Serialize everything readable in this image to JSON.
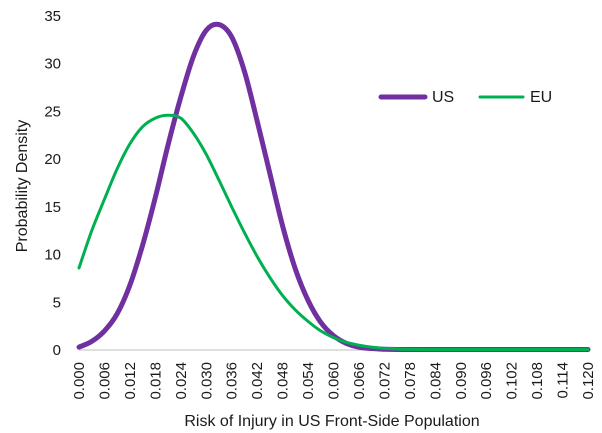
{
  "chart_data": {
    "type": "line",
    "title": "",
    "xlabel": "Risk of Injury in US Front-Side Population",
    "ylabel": "Probability Density",
    "xlim": [
      0.0,
      0.12
    ],
    "ylim": [
      0,
      35
    ],
    "x_ticks": [
      "0.000",
      "0.006",
      "0.012",
      "0.018",
      "0.024",
      "0.030",
      "0.036",
      "0.042",
      "0.048",
      "0.054",
      "0.060",
      "0.066",
      "0.072",
      "0.078",
      "0.084",
      "0.090",
      "0.096",
      "0.102",
      "0.108",
      "0.114",
      "0.120"
    ],
    "y_ticks": [
      "0",
      "5",
      "10",
      "15",
      "20",
      "25",
      "30",
      "35"
    ],
    "grid": false,
    "legend_position": "top-right",
    "series": [
      {
        "name": "US",
        "color": "#7030A0",
        "x": [
          0.0,
          0.003,
          0.006,
          0.009,
          0.012,
          0.015,
          0.018,
          0.021,
          0.024,
          0.027,
          0.03,
          0.033,
          0.036,
          0.039,
          0.042,
          0.045,
          0.048,
          0.051,
          0.054,
          0.057,
          0.06,
          0.063,
          0.066,
          0.069,
          0.072,
          0.075,
          0.078,
          0.084,
          0.09,
          0.096,
          0.102,
          0.108,
          0.114,
          0.12
        ],
        "y": [
          0.3,
          0.9,
          2.0,
          3.8,
          6.8,
          11.0,
          16.0,
          21.5,
          26.5,
          30.8,
          33.5,
          34.1,
          32.8,
          29.2,
          24.0,
          18.5,
          13.0,
          8.5,
          5.2,
          2.9,
          1.5,
          0.7,
          0.3,
          0.15,
          0.08,
          0.05,
          0.05,
          0.05,
          0.05,
          0.05,
          0.05,
          0.05,
          0.05,
          0.05
        ]
      },
      {
        "name": "EU",
        "color": "#00B050",
        "x": [
          0.0,
          0.003,
          0.006,
          0.009,
          0.012,
          0.015,
          0.018,
          0.021,
          0.024,
          0.027,
          0.03,
          0.033,
          0.036,
          0.039,
          0.042,
          0.045,
          0.048,
          0.051,
          0.054,
          0.057,
          0.06,
          0.063,
          0.066,
          0.069,
          0.072,
          0.075,
          0.078,
          0.084,
          0.09,
          0.096,
          0.102,
          0.108,
          0.114,
          0.12
        ],
        "y": [
          8.6,
          12.5,
          15.8,
          19.0,
          21.6,
          23.4,
          24.3,
          24.6,
          24.3,
          22.7,
          20.5,
          17.8,
          15.0,
          12.3,
          9.8,
          7.6,
          5.7,
          4.2,
          3.0,
          2.0,
          1.3,
          0.8,
          0.5,
          0.3,
          0.18,
          0.1,
          0.06,
          0.05,
          0.05,
          0.05,
          0.05,
          0.05,
          0.05,
          0.05
        ]
      }
    ]
  }
}
